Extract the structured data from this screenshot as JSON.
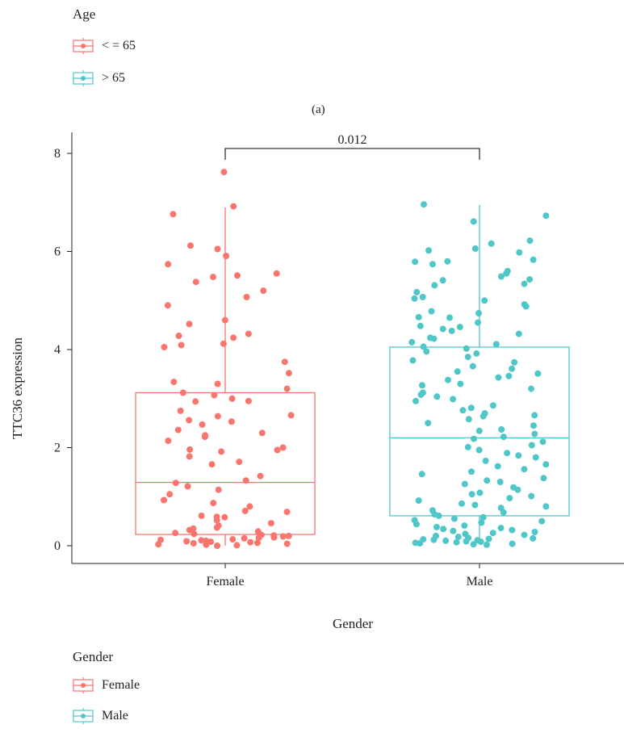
{
  "top_legend": {
    "title": "Age",
    "items": [
      {
        "label": "< = 65",
        "color": "#F8766D"
      },
      {
        "label": "> 65",
        "color": "#4FC7C9"
      }
    ]
  },
  "panel_label": "(a)",
  "bottom_legend": {
    "title": "Gender",
    "items": [
      {
        "label": "Female",
        "color": "#F8766D"
      },
      {
        "label": "Male",
        "color": "#4FC7C9"
      }
    ]
  },
  "chart_data": {
    "type": "box",
    "xlabel": "Gender",
    "ylabel": "TTC36 expression",
    "categories": [
      "Female",
      "Male"
    ],
    "ylim": [
      -0.2,
      8.6
    ],
    "yticks": [
      0,
      2,
      4,
      6,
      8
    ],
    "grid": false,
    "significance": {
      "label": "0.012",
      "height": 8.1,
      "between": [
        "Female",
        "Male"
      ]
    },
    "boxes": [
      {
        "name": "Female",
        "color": "#F8766D",
        "q1": 0.23,
        "median": 1.29,
        "q3": 3.12,
        "whisker_low": 0.0,
        "whisker_high": 6.9
      },
      {
        "name": "Male",
        "color": "#4FC7C9",
        "q1": 0.61,
        "median": 2.2,
        "q3": 4.05,
        "whisker_low": 0.03,
        "whisker_high": 6.95
      }
    ],
    "points": {
      "Female": [
        7.62,
        6.92,
        6.76,
        6.12,
        6.05,
        5.91,
        5.74,
        5.55,
        5.51,
        5.48,
        5.38,
        5.2,
        5.07,
        4.9,
        4.6,
        4.52,
        4.32,
        4.28,
        4.24,
        4.12,
        4.09,
        4.05,
        3.75,
        3.52,
        3.34,
        3.3,
        3.2,
        3.12,
        3.07,
        3.0,
        2.95,
        2.94,
        2.75,
        2.66,
        2.64,
        2.56,
        2.53,
        2.47,
        2.36,
        2.3,
        2.25,
        2.22,
        2.14,
        2.0,
        1.96,
        1.95,
        1.92,
        1.82,
        1.71,
        1.66,
        1.42,
        1.33,
        1.28,
        1.21,
        1.14,
        1.05,
        0.93,
        0.87,
        0.8,
        0.71,
        0.69,
        0.61,
        0.59,
        0.58,
        0.52,
        0.46,
        0.41,
        0.37,
        0.35,
        0.32,
        0.29,
        0.26,
        0.24,
        0.22,
        0.21,
        0.2,
        0.19,
        0.17,
        0.16,
        0.15,
        0.13,
        0.12,
        0.11,
        0.1,
        0.09,
        0.08,
        0.07,
        0.06,
        0.05,
        0.04,
        0.03,
        0.02,
        0.01,
        0.0
      ],
      "Male": [
        6.96,
        6.73,
        6.61,
        6.22,
        6.16,
        6.06,
        6.02,
        5.98,
        5.83,
        5.8,
        5.79,
        5.74,
        5.6,
        5.55,
        5.49,
        5.43,
        5.41,
        5.34,
        5.31,
        5.17,
        5.07,
        5.04,
        5.0,
        4.92,
        4.88,
        4.78,
        4.74,
        4.66,
        4.65,
        4.55,
        4.48,
        4.46,
        4.42,
        4.38,
        4.32,
        4.24,
        4.22,
        4.15,
        4.11,
        4.06,
        4.02,
        3.96,
        3.92,
        3.85,
        3.78,
        3.74,
        3.66,
        3.61,
        3.55,
        3.51,
        3.46,
        3.43,
        3.38,
        3.3,
        3.27,
        3.2,
        3.12,
        3.08,
        3.04,
        2.99,
        2.95,
        2.86,
        2.81,
        2.76,
        2.7,
        2.66,
        2.64,
        2.58,
        2.5,
        2.45,
        2.37,
        2.34,
        2.28,
        2.22,
        2.18,
        2.12,
        2.05,
        2.01,
        1.95,
        1.89,
        1.84,
        1.8,
        1.73,
        1.66,
        1.62,
        1.56,
        1.51,
        1.46,
        1.38,
        1.33,
        1.3,
        1.26,
        1.19,
        1.14,
        1.08,
        1.05,
        1.01,
        0.97,
        0.92,
        0.86,
        0.83,
        0.8,
        0.77,
        0.72,
        0.68,
        0.64,
        0.61,
        0.58,
        0.55,
        0.52,
        0.5,
        0.47,
        0.44,
        0.41,
        0.38,
        0.36,
        0.34,
        0.32,
        0.3,
        0.28,
        0.26,
        0.24,
        0.22,
        0.2,
        0.18,
        0.16,
        0.15,
        0.14,
        0.13,
        0.12,
        0.11,
        0.1,
        0.09,
        0.08,
        0.07,
        0.06,
        0.05,
        0.04,
        0.03,
        0.02
      ]
    }
  }
}
